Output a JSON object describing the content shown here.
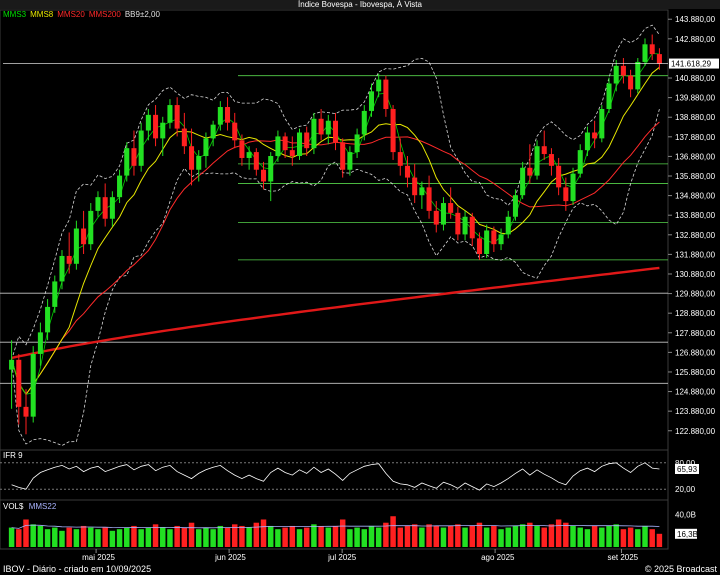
{
  "window": {
    "title": "Índice Bovespa - Ibovespa, À Vista"
  },
  "legend": [
    {
      "label": "MMS3",
      "color": "#00e000"
    },
    {
      "label": "MMS8",
      "color": "#e8e800"
    },
    {
      "label": "MMS20",
      "color": "#ff2a2a"
    },
    {
      "label": "MMS200",
      "color": "#ff2a2a"
    },
    {
      "label": "BB9±2,00",
      "color": "#e0e0e0"
    }
  ],
  "ifr": {
    "label": "IFR 9",
    "value_label": "65,93",
    "levels": [
      "80,00",
      "20,00"
    ]
  },
  "volume": {
    "label": "VOL$",
    "ma_label": "MMS22",
    "axis_label": "40,0B",
    "value_label": "16,3B"
  },
  "footer": {
    "left": "IBOV - Diário - criado em 10/09/2025",
    "right": "© 2025 Broadcast"
  },
  "chart_data": {
    "type": "candlestick",
    "title": "Índice Bovespa - Ibovespa, À Vista",
    "y_ticks": [
      "143.880,00",
      "142.880,00",
      "140.880,00",
      "139.880,00",
      "138.880,00",
      "137.880,00",
      "136.880,00",
      "135.880,00",
      "134.880,00",
      "133.880,00",
      "132.880,00",
      "131.880,00",
      "130.880,00",
      "129.880,00",
      "128.880,00",
      "127.880,00",
      "126.880,00",
      "125.880,00",
      "124.880,00",
      "123.880,00",
      "122.880,00"
    ],
    "ylim": [
      122000,
      144300
    ],
    "x_ticks": [
      "mai 2025",
      "jun 2025",
      "jul 2025",
      "ago 2025",
      "set 2025"
    ],
    "last_price_label": "141.618,29",
    "last_price": 141618.29,
    "horizontal_levels": [
      141000,
      136500,
      135500,
      133500,
      131600,
      129900,
      127400,
      125300
    ],
    "candles": [
      [
        126000,
        127500,
        124000,
        126500
      ],
      [
        126500,
        126800,
        123200,
        124100
      ],
      [
        124100,
        125000,
        122700,
        123600
      ],
      [
        123600,
        127200,
        123300,
        126800
      ],
      [
        126800,
        128400,
        126200,
        127900
      ],
      [
        127900,
        129600,
        127500,
        129200
      ],
      [
        129200,
        130800,
        128900,
        130500
      ],
      [
        130500,
        132100,
        130100,
        131800
      ],
      [
        131800,
        133000,
        130900,
        131400
      ],
      [
        131400,
        133600,
        131100,
        133200
      ],
      [
        133200,
        134100,
        131900,
        132400
      ],
      [
        132400,
        134500,
        132100,
        134100
      ],
      [
        134100,
        135100,
        133800,
        134800
      ],
      [
        134800,
        135500,
        133300,
        133700
      ],
      [
        133700,
        135100,
        133300,
        134800
      ],
      [
        134800,
        136200,
        134500,
        135900
      ],
      [
        135900,
        137600,
        135600,
        137300
      ],
      [
        137300,
        138200,
        135900,
        136400
      ],
      [
        136400,
        138600,
        136100,
        138200
      ],
      [
        138200,
        139300,
        137700,
        139000
      ],
      [
        139000,
        139500,
        137400,
        137800
      ],
      [
        137800,
        138900,
        136900,
        138600
      ],
      [
        138600,
        139800,
        138300,
        139500
      ],
      [
        139500,
        139900,
        137900,
        138300
      ],
      [
        138300,
        139100,
        137000,
        137400
      ],
      [
        137400,
        138300,
        135400,
        136200
      ],
      [
        136200,
        137200,
        135600,
        136900
      ],
      [
        136900,
        138100,
        136300,
        137800
      ],
      [
        137800,
        138700,
        137400,
        138500
      ],
      [
        138500,
        139700,
        138200,
        139400
      ],
      [
        139400,
        139900,
        138200,
        138600
      ],
      [
        138600,
        139100,
        137300,
        137700
      ],
      [
        137700,
        138000,
        136400,
        136800
      ],
      [
        136800,
        137400,
        136200,
        137100
      ],
      [
        137100,
        137300,
        135900,
        136200
      ],
      [
        136200,
        136600,
        135200,
        135600
      ],
      [
        135600,
        137100,
        134600,
        136900
      ],
      [
        136900,
        138200,
        136600,
        137900
      ],
      [
        137900,
        138100,
        136800,
        137200
      ],
      [
        137200,
        137900,
        136400,
        136900
      ],
      [
        136900,
        138300,
        136700,
        138100
      ],
      [
        138100,
        138400,
        136900,
        137300
      ],
      [
        137300,
        139100,
        137000,
        138800
      ],
      [
        138800,
        139300,
        137700,
        138000
      ],
      [
        138000,
        139000,
        137500,
        138700
      ],
      [
        138700,
        139100,
        137200,
        137600
      ],
      [
        137600,
        137800,
        135800,
        136200
      ],
      [
        136200,
        137400,
        135900,
        137100
      ],
      [
        137100,
        138300,
        136800,
        138000
      ],
      [
        138000,
        139500,
        137700,
        139200
      ],
      [
        139200,
        140600,
        138900,
        140200
      ],
      [
        140200,
        141100,
        139900,
        140800
      ],
      [
        140800,
        141000,
        138900,
        139300
      ],
      [
        139300,
        139500,
        136700,
        137100
      ],
      [
        137100,
        137800,
        135900,
        136400
      ],
      [
        136400,
        136900,
        135300,
        135800
      ],
      [
        135800,
        136500,
        134500,
        134900
      ],
      [
        134900,
        135600,
        134200,
        135300
      ],
      [
        135300,
        135900,
        133700,
        134100
      ],
      [
        134100,
        134600,
        133000,
        133400
      ],
      [
        133400,
        134800,
        133100,
        134500
      ],
      [
        134500,
        135300,
        133700,
        134000
      ],
      [
        134000,
        134300,
        132600,
        132900
      ],
      [
        132900,
        134100,
        132600,
        133800
      ],
      [
        133800,
        134000,
        132300,
        132700
      ],
      [
        132700,
        133000,
        131600,
        131900
      ],
      [
        131900,
        133400,
        131700,
        133100
      ],
      [
        133100,
        133300,
        132000,
        132400
      ],
      [
        132400,
        133200,
        132100,
        132900
      ],
      [
        132900,
        134100,
        132700,
        133800
      ],
      [
        133800,
        135200,
        133600,
        134900
      ],
      [
        134900,
        136600,
        134700,
        136300
      ],
      [
        136300,
        137500,
        135500,
        135900
      ],
      [
        135900,
        137700,
        135700,
        137400
      ],
      [
        137400,
        138200,
        136700,
        137000
      ],
      [
        137000,
        137300,
        135900,
        136400
      ],
      [
        136400,
        136800,
        134900,
        135300
      ],
      [
        135300,
        135800,
        134100,
        134600
      ],
      [
        134600,
        136300,
        134400,
        136000
      ],
      [
        136000,
        137500,
        135800,
        137200
      ],
      [
        137200,
        138400,
        136900,
        138100
      ],
      [
        138100,
        138700,
        137300,
        137800
      ],
      [
        137800,
        139500,
        137600,
        139300
      ],
      [
        139300,
        140900,
        139100,
        140600
      ],
      [
        140600,
        141800,
        140200,
        141500
      ],
      [
        141500,
        141900,
        140600,
        141000
      ],
      [
        141000,
        141300,
        139900,
        140300
      ],
      [
        140300,
        141900,
        140100,
        141700
      ],
      [
        141700,
        142900,
        141500,
        142600
      ],
      [
        142600,
        143100,
        141800,
        142100
      ],
      [
        142100,
        142400,
        141300,
        141618
      ]
    ],
    "ifr": [
      30,
      24,
      20,
      45,
      58,
      64,
      70,
      74,
      66,
      72,
      60,
      68,
      72,
      60,
      66,
      72,
      76,
      64,
      72,
      76,
      62,
      70,
      74,
      60,
      52,
      44,
      56,
      64,
      70,
      74,
      62,
      52,
      44,
      52,
      44,
      38,
      58,
      68,
      58,
      52,
      64,
      56,
      70,
      58,
      66,
      54,
      40,
      56,
      64,
      72,
      76,
      78,
      56,
      38,
      32,
      30,
      24,
      34,
      28,
      22,
      36,
      30,
      22,
      34,
      26,
      18,
      32,
      26,
      34,
      44,
      56,
      66,
      52,
      64,
      54,
      46,
      36,
      30,
      50,
      62,
      68,
      60,
      72,
      78,
      80,
      68,
      58,
      72,
      80,
      68,
      65.93
    ],
    "volume": [
      24,
      22,
      34,
      28,
      26,
      22,
      24,
      20,
      24,
      22,
      26,
      24,
      22,
      24,
      20,
      22,
      24,
      26,
      22,
      24,
      28,
      24,
      22,
      26,
      24,
      30,
      22,
      24,
      22,
      26,
      24,
      28,
      26,
      24,
      30,
      34,
      26,
      22,
      24,
      26,
      22,
      24,
      28,
      26,
      24,
      26,
      34,
      22,
      24,
      22,
      26,
      24,
      30,
      38,
      24,
      26,
      28,
      24,
      28,
      26,
      24,
      26,
      28,
      24,
      26,
      30,
      24,
      26,
      22,
      24,
      26,
      28,
      30,
      26,
      24,
      28,
      34,
      30,
      26,
      24,
      22,
      26,
      24,
      26,
      28,
      22,
      24,
      22,
      26,
      22,
      16.3
    ]
  }
}
